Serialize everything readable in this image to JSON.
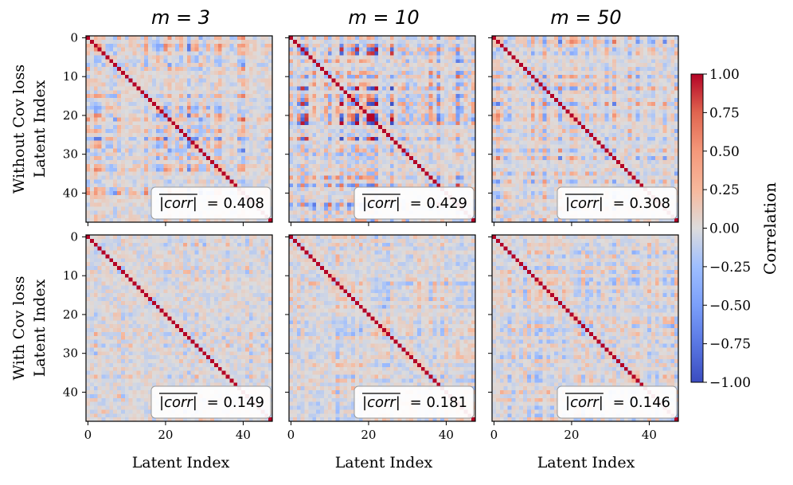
{
  "chart_data": {
    "type": "heatmap",
    "grid_size": 48,
    "value_range": [
      -1.0,
      1.0
    ],
    "colormap": "coolwarm",
    "columns": [
      {
        "title": "m = 3",
        "m": 3
      },
      {
        "title": "m = 10",
        "m": 10
      },
      {
        "title": "m = 50",
        "m": 50
      }
    ],
    "rows": [
      {
        "label_line1": "Without Cov loss",
        "label_line2": "Latent Index"
      },
      {
        "label_line1": "With Cov loss",
        "label_line2": "Latent Index"
      }
    ],
    "xlabel": "Latent Index",
    "x_ticks": [
      0,
      20,
      40
    ],
    "y_ticks": [
      0,
      10,
      20,
      30,
      40
    ],
    "annotation_label": "|corr|",
    "annotation_values": [
      [
        "0.408",
        "0.429",
        "0.308"
      ],
      [
        "0.149",
        "0.181",
        "0.146"
      ]
    ],
    "panel_params": [
      [
        {
          "s": 0.62,
          "seed": 11
        },
        {
          "s": 0.66,
          "seed": 23
        },
        {
          "s": 0.5,
          "seed": 37
        }
      ],
      [
        {
          "s": 0.2,
          "seed": 41
        },
        {
          "s": 0.24,
          "seed": 53
        },
        {
          "s": 0.19,
          "seed": 67
        }
      ]
    ],
    "colorbar": {
      "label": "Correlation",
      "ticks": [
        "1.00",
        "0.75",
        "0.50",
        "0.25",
        "0.00",
        "−0.25",
        "−0.50",
        "−0.75",
        "−1.00"
      ]
    }
  }
}
